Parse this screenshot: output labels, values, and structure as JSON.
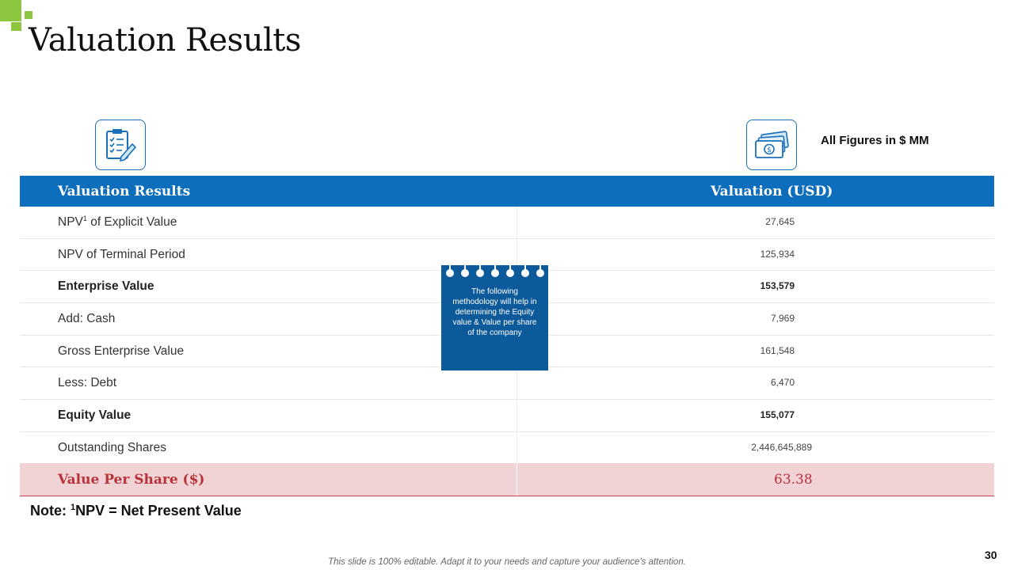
{
  "header": {
    "title": "Valuation Results"
  },
  "figures_note": "All Figures in $ MM",
  "table": {
    "headers": [
      "Valuation Results",
      "Valuation (USD)"
    ],
    "rows": [
      {
        "label_pre": "NPV",
        "label_sup": "1",
        "label_post": " of Explicit Value",
        "value": "27,645"
      },
      {
        "label": "NPV of Terminal Period",
        "value": "125,934"
      },
      {
        "label": "Enterprise Value",
        "value": "153,579",
        "bold": true
      },
      {
        "label": "Add: Cash",
        "value": "7,969"
      },
      {
        "label": "Gross Enterprise Value",
        "value": "161,548"
      },
      {
        "label": "Less: Debt",
        "value": "6,470"
      },
      {
        "label": "Equity Value",
        "value": "155,077",
        "bold": true
      },
      {
        "label": "Outstanding Shares",
        "value": "2,446,645,889"
      }
    ],
    "total": {
      "label": "Value Per Share ($)",
      "value": "63.38"
    }
  },
  "memo": {
    "text": "The following methodology will help in determining the Equity value & Value per share of the company"
  },
  "note": {
    "prefix": "Note: ",
    "sup": "1",
    "text": "NPV = Net Present Value"
  },
  "footer": "This slide is 100% editable. Adapt it to your needs and capture your audience's attention.",
  "page_number": "30",
  "icons": {
    "left": "clipboard-pen-icon",
    "right": "money-icon"
  },
  "colors": {
    "accent_blue": "#0d6ebd",
    "memo_blue": "#0d5a9a",
    "total_bg": "#f2d3d5",
    "total_text": "#b8323a",
    "deco_green": "#8dc63f"
  }
}
